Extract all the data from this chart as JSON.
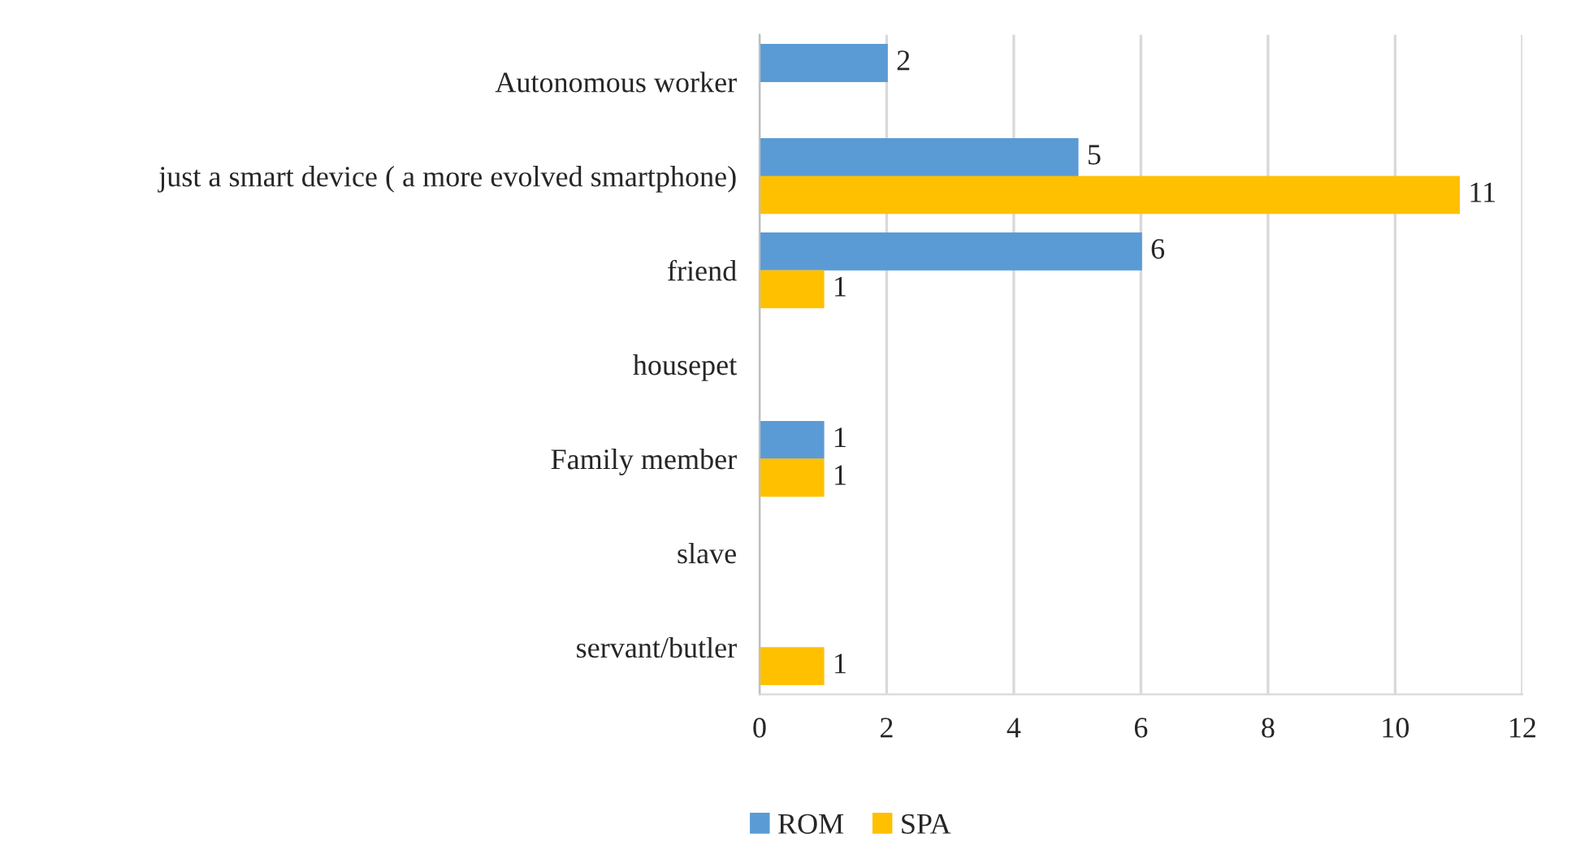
{
  "chart_data": {
    "type": "bar",
    "orientation": "horizontal",
    "categories": [
      "Autonomous worker",
      "just a smart device ( a more evolved smartphone)",
      "friend",
      "housepet",
      "Family member",
      "slave",
      "servant/butler"
    ],
    "series": [
      {
        "name": "ROM",
        "color": "#5b9bd5",
        "values": [
          2,
          5,
          6,
          null,
          1,
          null,
          null
        ]
      },
      {
        "name": "SPA",
        "color": "#ffc000",
        "values": [
          null,
          11,
          1,
          null,
          1,
          null,
          1
        ]
      }
    ],
    "xlim": [
      0,
      12
    ],
    "xticks": [
      0,
      2,
      4,
      6,
      8,
      10,
      12
    ],
    "grid": "x",
    "legend": "bottom",
    "data_labels": true
  }
}
